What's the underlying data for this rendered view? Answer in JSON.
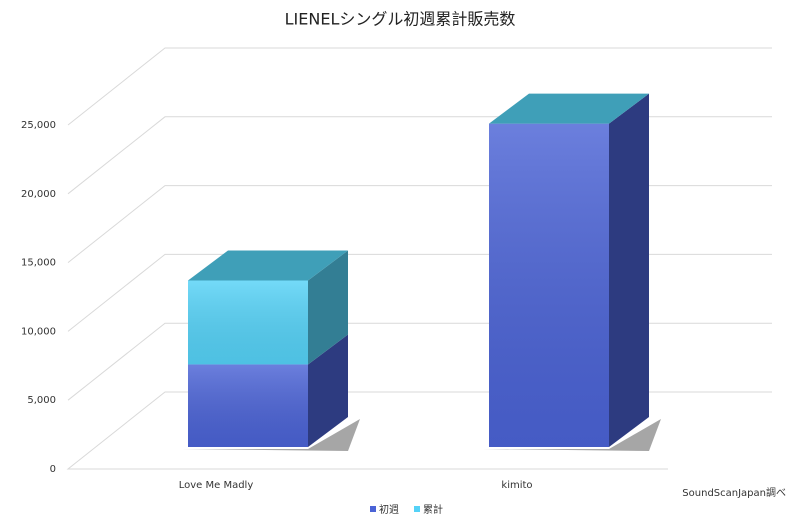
{
  "chart_data": {
    "type": "bar3d_stacked",
    "title": "LIENELシングル初週累計販売数",
    "categories": [
      "Love Me Madly",
      "kimito"
    ],
    "series": [
      {
        "name": "初週",
        "color": "#4b63d6",
        "values": [
          6000,
          23500
        ]
      },
      {
        "name": "累計",
        "color": "#55d2f7",
        "values": [
          6100,
          null
        ]
      }
    ],
    "ylim": [
      0,
      25000
    ],
    "yticks": [
      0,
      {
        "value": 5000,
        "label": "5,000"
      },
      {
        "value": 10000,
        "label": "10,000"
      },
      {
        "value": 15000,
        "label": "15,000"
      },
      {
        "value": 20000,
        "label": "20,000"
      },
      {
        "value": 25000,
        "label": "25,000"
      }
    ],
    "grid": true,
    "legend": "bottom",
    "source": "SoundScanJapan調べ"
  }
}
